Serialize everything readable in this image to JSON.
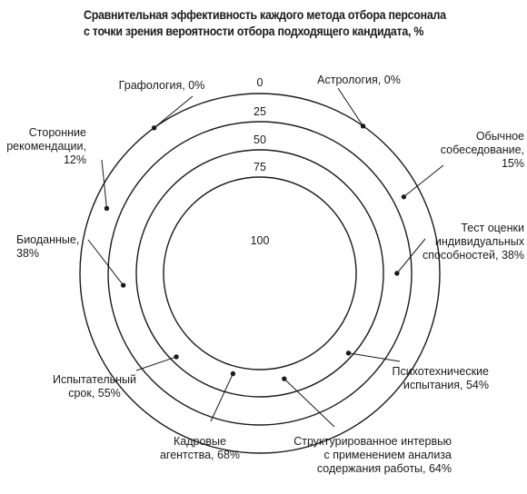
{
  "title": {
    "line1": "Сравнительная эффективность каждого метода отбора персонала",
    "line2": "с точки зрения вероятности отбора подходящего кандидата, %"
  },
  "chart_data": {
    "type": "radial",
    "title": "Сравнительная эффективность каждого метода отбора персонала с точки зрения вероятности отбора подходящего кандидата, %",
    "scale_ticks": [
      "0",
      "25",
      "50",
      "75",
      "100"
    ],
    "scale_direction": "inward",
    "grid": true,
    "points": [
      {
        "label": [
          "Графология, 0%"
        ],
        "value": 0
      },
      {
        "label": [
          "Астрология, 0%"
        ],
        "value": 0
      },
      {
        "label": [
          "Обычное",
          "собеседование,",
          "15%"
        ],
        "value": 15
      },
      {
        "label": [
          "Тест оценки",
          "индивидуальных",
          "способностей, 38%"
        ],
        "value": 38
      },
      {
        "label": [
          "Психотехнические",
          "испытания, 54%"
        ],
        "value": 54
      },
      {
        "label": [
          "Структурированное интервью",
          "с применением анализа",
          "содержания работы, 64%"
        ],
        "value": 64
      },
      {
        "label": [
          "Кадровые",
          "агентства, 68%"
        ],
        "value": 68
      },
      {
        "label": [
          "Испытательный",
          "срок, 55%"
        ],
        "value": 55
      },
      {
        "label": [
          "Биоданные,",
          "38%"
        ],
        "value": 38
      },
      {
        "label": [
          "Сторонние",
          "рекомендации,",
          "12%"
        ],
        "value": 12
      }
    ],
    "colors": {
      "ink": "#1a1a1a",
      "background": "#ffffff"
    }
  }
}
